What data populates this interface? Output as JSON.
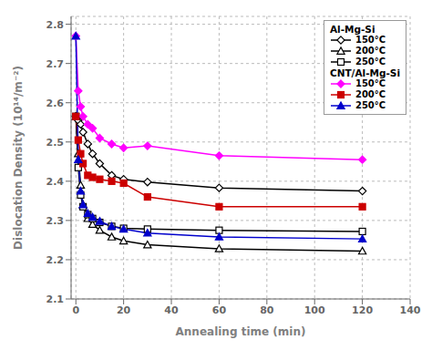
{
  "chart_data": {
    "type": "line",
    "xlabel": "Annealing time (min)",
    "ylabel": "Dislocation Density (10¹⁴/m⁻²)",
    "xlim": [
      -2,
      140
    ],
    "ylim": [
      2.1,
      2.82
    ],
    "xticks": [
      0,
      20,
      40,
      60,
      80,
      100,
      120,
      140
    ],
    "yticks": [
      2.1,
      2.2,
      2.3,
      2.4,
      2.5,
      2.6,
      2.7,
      2.8
    ],
    "grid": true,
    "legend": "upper right",
    "x": [
      0,
      1,
      2,
      3,
      5,
      7,
      10,
      15,
      20,
      30,
      60,
      120
    ],
    "series": [
      {
        "name": "150°C",
        "group": "Al-Mg-Si",
        "color": "black",
        "marker": "open_diamond",
        "line_style": "solid",
        "values": [
          2.565,
          2.555,
          2.545,
          2.525,
          2.495,
          2.47,
          2.445,
          2.415,
          2.405,
          2.398,
          2.383,
          2.375
        ]
      },
      {
        "name": "200°C",
        "group": "Al-Mg-Si",
        "color": "black",
        "marker": "open_triangle",
        "line_style": "solid",
        "values": [
          2.565,
          2.47,
          2.39,
          2.34,
          2.305,
          2.29,
          2.275,
          2.258,
          2.248,
          2.238,
          2.228,
          2.222
        ]
      },
      {
        "name": "250°C",
        "group": "Al-Mg-Si",
        "color": "black",
        "marker": "open_square",
        "line_style": "solid",
        "values": [
          2.565,
          2.435,
          2.365,
          2.335,
          2.315,
          2.305,
          2.295,
          2.285,
          2.28,
          2.278,
          2.275,
          2.272
        ]
      },
      {
        "name": "150°C",
        "group": "CNT/Al-Mg-Si",
        "color": "#ff00ff",
        "marker": "diamond",
        "line_style": "solid",
        "values": [
          2.77,
          2.63,
          2.59,
          2.565,
          2.545,
          2.535,
          2.51,
          2.495,
          2.485,
          2.49,
          2.465,
          2.455
        ]
      },
      {
        "name": "200°C",
        "group": "CNT/Al-Mg-Si",
        "color": "#cc0000",
        "marker": "square",
        "line_style": "solid",
        "values": [
          2.565,
          2.505,
          2.47,
          2.445,
          2.415,
          2.41,
          2.405,
          2.4,
          2.395,
          2.36,
          2.335,
          2.335
        ]
      },
      {
        "name": "250°C",
        "group": "CNT/Al-Mg-Si",
        "color": "#0000cc",
        "marker": "triangle",
        "line_style": "solid",
        "values": [
          2.77,
          2.455,
          2.375,
          2.34,
          2.318,
          2.308,
          2.298,
          2.285,
          2.278,
          2.268,
          2.258,
          2.253
        ]
      }
    ]
  }
}
